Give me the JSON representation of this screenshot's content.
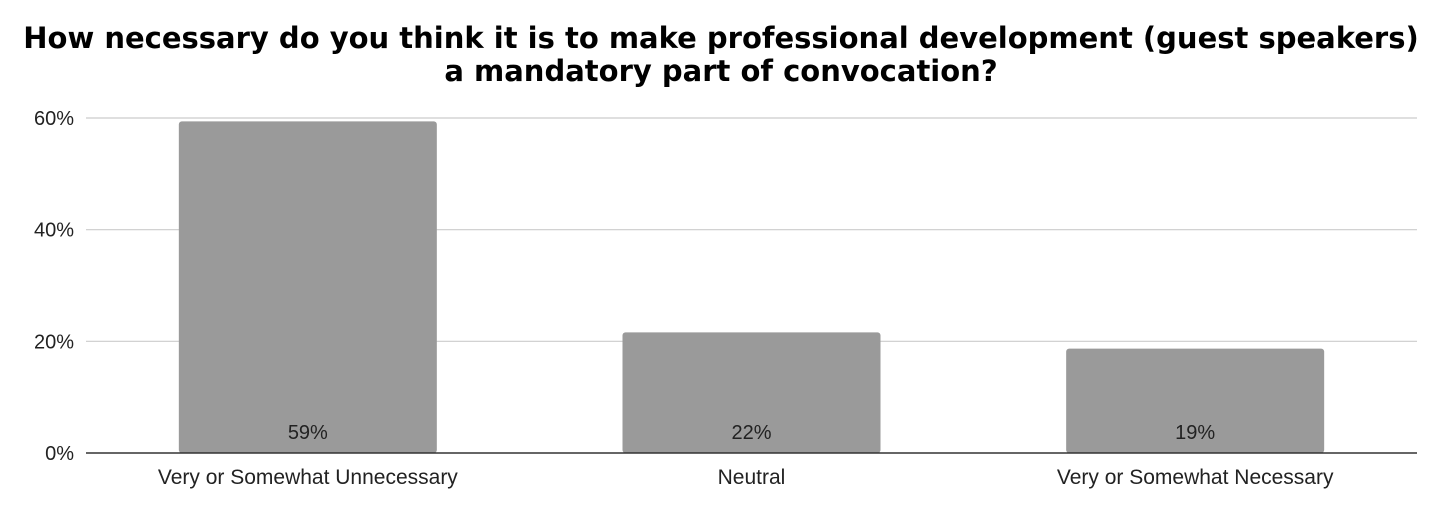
{
  "chart_data": {
    "type": "bar",
    "title_lines": [
      "How necessary do you think it is to make professional development (guest speakers)",
      "a mandatory part of convocation?"
    ],
    "categories": [
      "Very or Somewhat Unnecessary",
      "Neutral",
      "Very or Somewhat Necessary"
    ],
    "values": [
      59.4,
      21.6,
      18.7
    ],
    "data_labels": [
      "59%",
      "22%",
      "19%"
    ],
    "ylim": [
      0,
      60
    ],
    "yticks": [
      0,
      20,
      40,
      60
    ],
    "ytick_labels": [
      "0%",
      "20%",
      "40%",
      "60%"
    ],
    "xlabel": "",
    "ylabel": "",
    "grid": true,
    "legend": "none",
    "bar_color": "#9a9a9a",
    "grid_color": "#cccccc",
    "axis_color": "#333333"
  }
}
